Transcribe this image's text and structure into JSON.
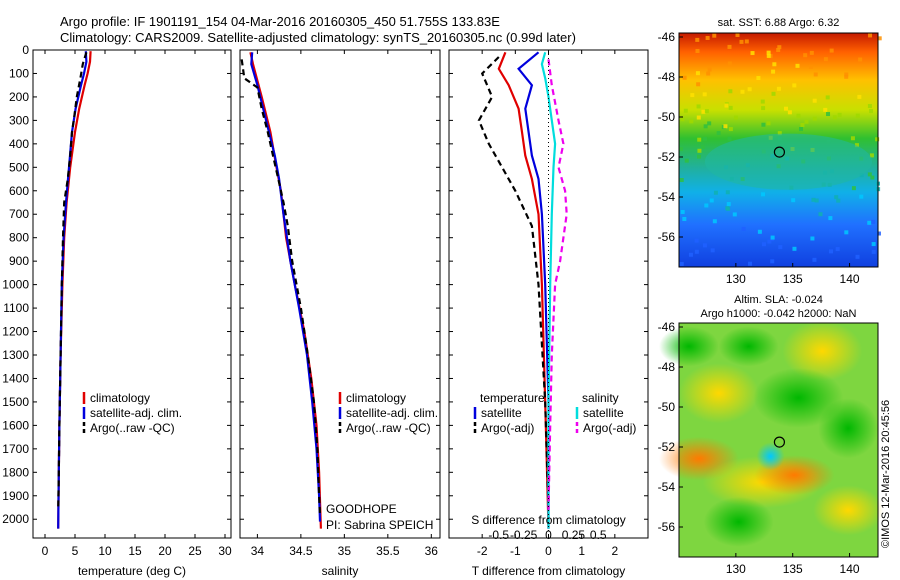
{
  "title_line1": "Argo profile: IF 1901191_154 04-Mar-2016 20160305_450 51.755S 133.83E",
  "title_line2": "Climatology: CARS2009. Satellite-adjusted climatology: synTS_20160305.nc (0.99d later)",
  "watermark": "©IMOS 12-Mar-2016 20:45:56",
  "chart_data": [
    {
      "type": "line",
      "xlabel": "temperature (deg C)",
      "xlim": [
        -2,
        31
      ],
      "ylim": [
        2080,
        0
      ],
      "xticks": [
        0,
        5,
        10,
        15,
        20,
        25,
        30
      ],
      "yticks": [
        0,
        100,
        200,
        300,
        400,
        500,
        600,
        700,
        800,
        900,
        1000,
        1100,
        1200,
        1300,
        1400,
        1500,
        1600,
        1700,
        1800,
        1900,
        2000
      ],
      "legend": [
        "climatology",
        "satellite-adj. clim.",
        "Argo(..raw -QC)"
      ],
      "legend_placement": "lower-right",
      "series": [
        {
          "name": "climatology",
          "color": "#e00000",
          "dash": "",
          "points": [
            [
              7.6,
              5
            ],
            [
              7.5,
              50
            ],
            [
              7.1,
              100
            ],
            [
              6.6,
              150
            ],
            [
              5.7,
              250
            ],
            [
              5.0,
              350
            ],
            [
              4.2,
              500
            ],
            [
              3.6,
              650
            ],
            [
              3.2,
              800
            ],
            [
              2.9,
              1000
            ],
            [
              2.6,
              1300
            ],
            [
              2.4,
              1600
            ],
            [
              2.3,
              1800
            ],
            [
              2.2,
              2040
            ]
          ]
        },
        {
          "name": "satellite-adj. clim.",
          "color": "#0000dd",
          "dash": "",
          "points": [
            [
              6.8,
              5
            ],
            [
              6.9,
              50
            ],
            [
              6.5,
              100
            ],
            [
              6.0,
              150
            ],
            [
              5.1,
              250
            ],
            [
              4.5,
              350
            ],
            [
              4.0,
              500
            ],
            [
              3.5,
              650
            ],
            [
              3.1,
              800
            ],
            [
              2.8,
              1000
            ],
            [
              2.6,
              1300
            ],
            [
              2.4,
              1600
            ],
            [
              2.3,
              1800
            ],
            [
              2.2,
              2040
            ]
          ]
        },
        {
          "name": "Argo(..raw -QC)",
          "color": "#000000",
          "dash": "6 4",
          "points": [
            [
              6.9,
              10
            ],
            [
              6.3,
              60
            ],
            [
              5.9,
              120
            ],
            [
              5.3,
              200
            ],
            [
              4.9,
              280
            ],
            [
              4.5,
              350
            ],
            [
              4.2,
              450
            ],
            [
              3.8,
              550
            ],
            [
              3.2,
              650
            ],
            [
              3.0,
              800
            ],
            [
              2.8,
              1000
            ],
            [
              2.6,
              1300
            ],
            [
              2.4,
              1600
            ],
            [
              2.3,
              1800
            ],
            [
              2.2,
              1960
            ]
          ]
        }
      ]
    },
    {
      "type": "line",
      "xlabel": "salinity",
      "xlim": [
        33.8,
        36.1
      ],
      "ylim": [
        2080,
        0
      ],
      "xticks": [
        34,
        34.5,
        35,
        35.5,
        36
      ],
      "legend": [
        "climatology",
        "satellite-adj. clim.",
        "Argo(..raw -QC)"
      ],
      "legend_placement": "lower-right",
      "annotation": [
        "GOODHOPE",
        "PI: Sabrina SPEICH"
      ],
      "series": [
        {
          "name": "climatology",
          "color": "#e00000",
          "dash": "",
          "points": [
            [
              33.92,
              10
            ],
            [
              33.95,
              60
            ],
            [
              34.05,
              200
            ],
            [
              34.15,
              350
            ],
            [
              34.22,
              500
            ],
            [
              34.27,
              600
            ],
            [
              34.33,
              800
            ],
            [
              34.43,
              1000
            ],
            [
              34.54,
              1200
            ],
            [
              34.62,
              1400
            ],
            [
              34.68,
              1600
            ],
            [
              34.71,
              1800
            ],
            [
              34.73,
              2040
            ]
          ]
        },
        {
          "name": "satellite-adj. clim.",
          "color": "#0000dd",
          "dash": "",
          "points": [
            [
              33.94,
              10
            ],
            [
              33.93,
              60
            ],
            [
              34.0,
              150
            ],
            [
              34.1,
              300
            ],
            [
              34.2,
              450
            ],
            [
              34.25,
              550
            ],
            [
              34.3,
              700
            ],
            [
              34.38,
              900
            ],
            [
              34.48,
              1100
            ],
            [
              34.57,
              1300
            ],
            [
              34.63,
              1500
            ],
            [
              34.68,
              1700
            ],
            [
              34.71,
              1900
            ],
            [
              34.72,
              2010
            ]
          ]
        },
        {
          "name": "Argo(..raw -QC)",
          "color": "#000000",
          "dash": "6 4",
          "points": [
            [
              33.82,
              40
            ],
            [
              33.85,
              120
            ],
            [
              34.0,
              160
            ],
            [
              34.05,
              250
            ],
            [
              34.12,
              350
            ],
            [
              34.18,
              450
            ],
            [
              34.24,
              550
            ],
            [
              34.3,
              650
            ],
            [
              34.35,
              750
            ],
            [
              34.4,
              900
            ],
            [
              34.5,
              1100
            ],
            [
              34.58,
              1300
            ],
            [
              34.65,
              1500
            ],
            [
              34.69,
              1700
            ],
            [
              34.71,
              1900
            ],
            [
              34.72,
              1980
            ]
          ]
        }
      ]
    },
    {
      "type": "line",
      "xlabel": "T difference from climatology",
      "xlabel_top": "S difference from climatology",
      "xlim": [
        -3,
        3
      ],
      "ylim": [
        2080,
        0
      ],
      "xticks": [
        -2,
        -1,
        0,
        1,
        2
      ],
      "xticks_top": [
        {
          "v": -1.5,
          "t": "-0.5"
        },
        {
          "v": -0.75,
          "t": "-0.25"
        },
        {
          "v": 0,
          "t": "0"
        },
        {
          "v": 0.75,
          "t": "0.25"
        },
        {
          "v": 1.5,
          "t": "0.5"
        }
      ],
      "legend_left": {
        "title": "temperature",
        "items": [
          "satellite",
          "Argo(-adj)"
        ]
      },
      "legend_right": {
        "title": "salinity",
        "items": [
          "satellite",
          "Argo(-adj)"
        ]
      },
      "series": [
        {
          "name": "T satellite",
          "color": "#e00000",
          "dash": "",
          "points": [
            [
              -1.3,
              10
            ],
            [
              -1.5,
              80
            ],
            [
              -1.2,
              150
            ],
            [
              -0.9,
              250
            ],
            [
              -0.8,
              350
            ],
            [
              -0.7,
              450
            ],
            [
              -0.5,
              550
            ],
            [
              -0.3,
              700
            ],
            [
              -0.2,
              1000
            ],
            [
              -0.1,
              1500
            ],
            [
              0,
              2040
            ]
          ]
        },
        {
          "name": "T Argo(-adj)",
          "color": "#000000",
          "dash": "6 4",
          "points": [
            [
              -1.5,
              30
            ],
            [
              -2.0,
              100
            ],
            [
              -1.7,
              200
            ],
            [
              -2.1,
              300
            ],
            [
              -1.8,
              400
            ],
            [
              -1.4,
              500
            ],
            [
              -1.0,
              600
            ],
            [
              -0.5,
              750
            ],
            [
              -0.3,
              1000
            ],
            [
              -0.1,
              1500
            ],
            [
              0,
              1960
            ]
          ]
        },
        {
          "name": "satellite",
          "color": "#0000dd",
          "dash": "",
          "points": [
            [
              -0.3,
              10
            ],
            [
              -0.9,
              80
            ],
            [
              -0.5,
              150
            ],
            [
              -0.7,
              250
            ],
            [
              -0.6,
              350
            ],
            [
              -0.5,
              450
            ],
            [
              -0.3,
              550
            ],
            [
              -0.2,
              700
            ],
            [
              -0.1,
              1000
            ],
            [
              0,
              1500
            ],
            [
              0,
              2040
            ]
          ]
        },
        {
          "name": "satellite",
          "color": "#00dddd",
          "dash": "",
          "points": [
            [
              -0.1,
              10
            ],
            [
              -0.2,
              60
            ],
            [
              -0.1,
              120
            ],
            [
              0.0,
              200
            ],
            [
              0.1,
              300
            ],
            [
              0.2,
              400
            ],
            [
              0.15,
              500
            ],
            [
              0.1,
              700
            ],
            [
              0.05,
              1000
            ],
            [
              0,
              1500
            ],
            [
              0,
              2040
            ]
          ]
        },
        {
          "name": "Argo(-adj)",
          "color": "#ee00ee",
          "dash": "6 4",
          "points": [
            [
              0.0,
              40
            ],
            [
              0.1,
              150
            ],
            [
              0.3,
              300
            ],
            [
              0.45,
              400
            ],
            [
              0.3,
              500
            ],
            [
              0.5,
              600
            ],
            [
              0.55,
              700
            ],
            [
              0.45,
              800
            ],
            [
              0.35,
              900
            ],
            [
              0.2,
              1000
            ],
            [
              0.1,
              1300
            ],
            [
              0.05,
              1600
            ],
            [
              0,
              1960
            ]
          ]
        }
      ]
    },
    {
      "type": "heatmap",
      "title": "sat. SST: 6.88 Argo: 6.32",
      "xlim": [
        125,
        142.5
      ],
      "ylim": [
        -57.5,
        -45.8
      ],
      "xticks": [
        130,
        135,
        140
      ],
      "yticks": [
        -46,
        -48,
        -50,
        -52,
        -54,
        -56
      ],
      "marker": [
        133.83,
        -51.755
      ]
    },
    {
      "type": "heatmap",
      "title": "Altim. SLA: -0.024",
      "subtitle": "Argo h1000: -0.042 h2000: NaN",
      "xlim": [
        125,
        142.5
      ],
      "ylim": [
        -57.5,
        -45.8
      ],
      "xticks": [
        130,
        135,
        140
      ],
      "yticks": [
        -46,
        -48,
        -50,
        -52,
        -54,
        -56
      ],
      "marker": [
        133.83,
        -51.755
      ]
    }
  ]
}
